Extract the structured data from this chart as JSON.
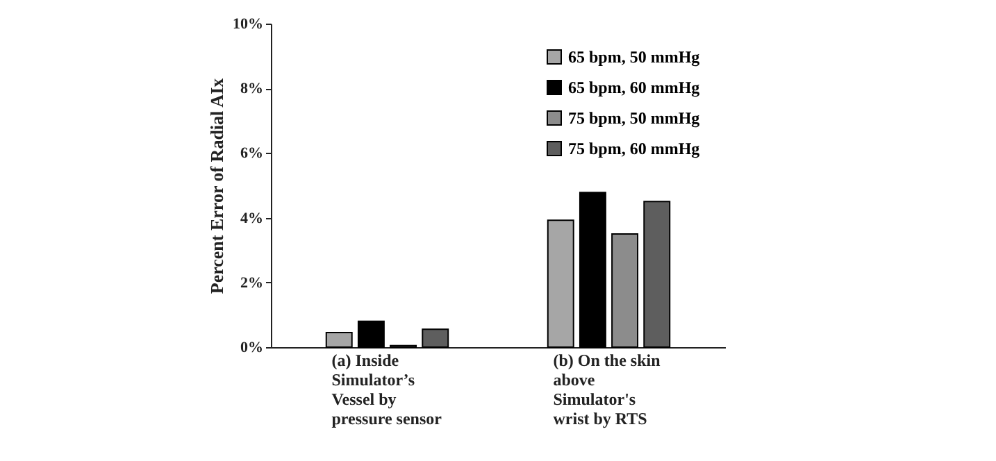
{
  "chart_data": {
    "type": "bar",
    "ylabel": "Percent Error of Radial AIx",
    "categories": [
      "(a) Inside Simulator’s Vessel by pressure sensor",
      "(b) On the skin above Simulator's wrist by RTS"
    ],
    "series": [
      {
        "name": "65 bpm, 50 mmHg",
        "color": "#a6a6a6",
        "values": [
          0.45,
          3.92
        ]
      },
      {
        "name": "65 bpm, 60 mmHg",
        "color": "#000000",
        "values": [
          0.8,
          4.78
        ]
      },
      {
        "name": "75 bpm, 50 mmHg",
        "color": "#8c8c8c",
        "values": [
          0.05,
          3.5
        ]
      },
      {
        "name": "75 bpm, 60 mmHg",
        "color": "#5e5e5e",
        "values": [
          0.55,
          4.5
        ]
      }
    ],
    "ylim": [
      0,
      10
    ],
    "yticks": [
      {
        "value": 0,
        "label": "0%"
      },
      {
        "value": 2,
        "label": "2%"
      },
      {
        "value": 4,
        "label": "4%"
      },
      {
        "value": 6,
        "label": "6%"
      },
      {
        "value": 8,
        "label": "8%"
      },
      {
        "value": 10,
        "label": "10%"
      }
    ],
    "grid": false,
    "legend": "top right"
  }
}
